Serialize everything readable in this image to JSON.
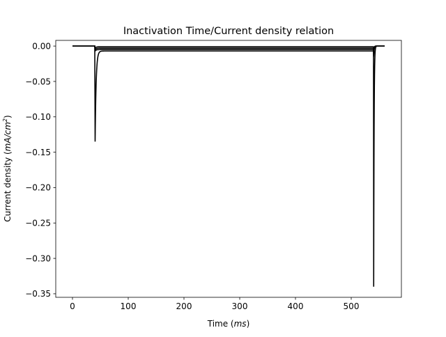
{
  "chart_data": {
    "type": "line",
    "title": "Inactivation Time/Current density relation",
    "xlabel": {
      "prefix": "Time (",
      "unit": "ms",
      "suffix": ")"
    },
    "ylabel": {
      "prefix": "Current density (",
      "unit": "mA/cm",
      "unit_sup": "2",
      "suffix": ")"
    },
    "xlim": [
      -30,
      590
    ],
    "ylim": [
      -0.355,
      0.008
    ],
    "xticks": [
      0,
      100,
      200,
      300,
      400,
      500
    ],
    "yticks": [
      0.0,
      -0.05,
      -0.1,
      -0.15,
      -0.2,
      -0.25,
      -0.3,
      -0.35
    ],
    "ytick_labels": [
      "0.00",
      "−0.05",
      "−0.10",
      "−0.15",
      "−0.20",
      "−0.25",
      "−0.30",
      "−0.35"
    ],
    "grid": false,
    "legend": "none",
    "line_color": "#000000",
    "stimulus": {
      "t_start": 0,
      "step_on": 40,
      "step_off": 540,
      "t_end": 560,
      "peak1": -0.135,
      "plateaus": [
        -0.001,
        -0.003,
        -0.005,
        -0.007
      ],
      "peak2": -0.34
    }
  }
}
